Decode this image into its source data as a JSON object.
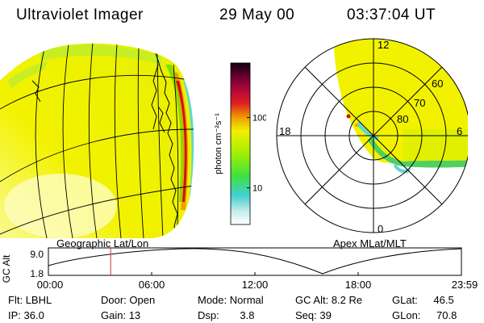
{
  "header": {
    "title": "Ultraviolet Imager",
    "date": "29 May 00",
    "time": "03:37:04 UT"
  },
  "colorbar": {
    "label": "photon cm⁻²s⁻¹",
    "tick_labels": [
      "100",
      "10"
    ],
    "ticks": [
      100,
      10
    ],
    "range": [
      3,
      600
    ],
    "scale": "log"
  },
  "polar": {
    "mlt_labels": [
      "12",
      "18",
      "6",
      "0"
    ],
    "lat_labels": [
      "60",
      "70",
      "80"
    ]
  },
  "panels": {
    "left_label": "Geographic Lat/Lon",
    "right_label": "Apex MLat/MLT"
  },
  "timeseries": {
    "ylabel": "GC Alt",
    "yticks": [
      "9.0",
      "1.8"
    ],
    "xticks": [
      "00:00",
      "06:00",
      "12:00",
      "18:00",
      "23:59"
    ],
    "marker_time_hours": 3.618
  },
  "info": {
    "flt_label": "Flt:",
    "flt_value": "LBHL",
    "ip_label": "IP:",
    "ip_value": "36.0",
    "door_label": "Door:",
    "door_value": "Open",
    "gain_label": "Gain:",
    "gain_value": "13",
    "mode_label": "Mode:",
    "mode_value": "Normal",
    "dsp_label": "Dsp:",
    "dsp_value": "3.8",
    "gcalt_label": "GC Alt:",
    "gcalt_value": "8.2 Re",
    "seq_label": "Seq:",
    "seq_value": "39",
    "glat_label": "GLat:",
    "glat_value": "46.5",
    "glon_label": "GLon:",
    "glon_value": "70.8"
  },
  "colors": {
    "yellow": "#f2f200",
    "pale_yellow": "#fafaa0",
    "green": "#60e000",
    "cyan": "#50d8d0",
    "orange": "#f0a000",
    "red": "#d01010",
    "marker": "#d03030"
  }
}
